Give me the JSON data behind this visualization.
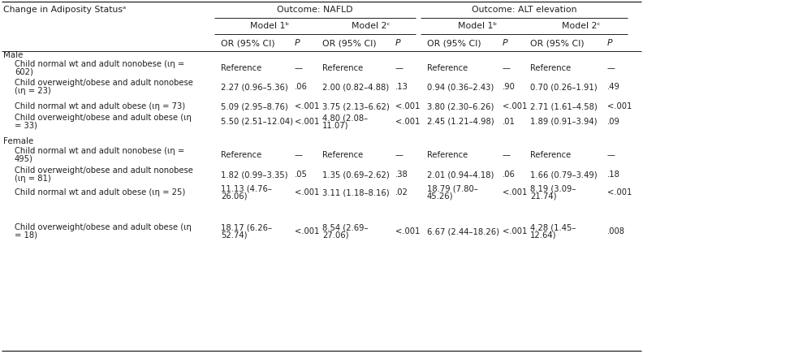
{
  "title_col": "Change in Adiposity Statusᵃ",
  "outcome_nafld": "Outcome: NAFLD",
  "outcome_alt": "Outcome: ALT elevation",
  "model1b": "Model 1ᵇ",
  "model2c": "Model 2ᶜ",
  "or_ci": "OR (95% CI)",
  "p_label": "P",
  "section_male": "Male",
  "section_female": "Female",
  "rows": [
    {
      "label_lines": [
        "Child normal wt and adult nonobese (ιη =",
        "602)"
      ],
      "m1_nafld_or_lines": [
        "Reference"
      ],
      "m1_nafld_p": "—",
      "m2_nafld_or_lines": [
        "Reference"
      ],
      "m2_nafld_p": "—",
      "m1_alt_or_lines": [
        "Reference"
      ],
      "m1_alt_p": "—",
      "m2_alt_or_lines": [
        "Reference"
      ],
      "m2_alt_p": "—",
      "section": "male"
    },
    {
      "label_lines": [
        "Child overweight/obese and adult nonobese",
        "(ιη = 23)"
      ],
      "m1_nafld_or_lines": [
        "2.27 (0.96–5.36)"
      ],
      "m1_nafld_p": ".06",
      "m2_nafld_or_lines": [
        "2.00 (0.82–4.88)"
      ],
      "m2_nafld_p": ".13",
      "m1_alt_or_lines": [
        "0.94 (0.36–2.43)"
      ],
      "m1_alt_p": ".90",
      "m2_alt_or_lines": [
        "0.70 (0.26–1.91)"
      ],
      "m2_alt_p": ".49",
      "section": "male"
    },
    {
      "label_lines": [
        "Child normal wt and adult obese (ιη = 73)"
      ],
      "m1_nafld_or_lines": [
        "5.09 (2.95–8.76)"
      ],
      "m1_nafld_p": "<.001",
      "m2_nafld_or_lines": [
        "3.75 (2.13–6.62)"
      ],
      "m2_nafld_p": "<.001",
      "m1_alt_or_lines": [
        "3.80 (2.30–6.26)"
      ],
      "m1_alt_p": "<.001",
      "m2_alt_or_lines": [
        "2.71 (1.61–4.58)"
      ],
      "m2_alt_p": "<.001",
      "section": "male"
    },
    {
      "label_lines": [
        "Child overweight/obese and adult obese (ιη",
        "= 33)"
      ],
      "m1_nafld_or_lines": [
        "5.50 (2.51–12.04)"
      ],
      "m1_nafld_p": "<.001",
      "m2_nafld_or_lines": [
        "4.80 (2.08–",
        "11.07)"
      ],
      "m2_nafld_p": "<.001",
      "m1_alt_or_lines": [
        "2.45 (1.21–4.98)"
      ],
      "m1_alt_p": ".01",
      "m2_alt_or_lines": [
        "1.89 (0.91–3.94)"
      ],
      "m2_alt_p": ".09",
      "section": "male"
    },
    {
      "label_lines": [
        "Child normal wt and adult nonobese (ιη =",
        "495)"
      ],
      "m1_nafld_or_lines": [
        "Reference"
      ],
      "m1_nafld_p": "—",
      "m2_nafld_or_lines": [
        "Reference"
      ],
      "m2_nafld_p": "—",
      "m1_alt_or_lines": [
        "Reference"
      ],
      "m1_alt_p": "—",
      "m2_alt_or_lines": [
        "Reference"
      ],
      "m2_alt_p": "—",
      "section": "female"
    },
    {
      "label_lines": [
        "Child overweight/obese and adult nonobese",
        "(ιη = 81)"
      ],
      "m1_nafld_or_lines": [
        "1.82 (0.99–3.35)"
      ],
      "m1_nafld_p": ".05",
      "m2_nafld_or_lines": [
        "1.35 (0.69–2.62)"
      ],
      "m2_nafld_p": ".38",
      "m1_alt_or_lines": [
        "2.01 (0.94–4.18)"
      ],
      "m1_alt_p": ".06",
      "m2_alt_or_lines": [
        "1.66 (0.79–3.49)"
      ],
      "m2_alt_p": ".18",
      "section": "female"
    },
    {
      "label_lines": [
        "Child normal wt and adult obese (ιη = 25)"
      ],
      "m1_nafld_or_lines": [
        "11.13 (4.76–",
        "26.06)"
      ],
      "m1_nafld_p": "<.001",
      "m2_nafld_or_lines": [
        "3.11 (1.18–8.16)"
      ],
      "m2_nafld_p": ".02",
      "m1_alt_or_lines": [
        "18.79 (7.80–",
        "45.26)"
      ],
      "m1_alt_p": "<.001",
      "m2_alt_or_lines": [
        "8.19 (3.09–",
        "21.74)"
      ],
      "m2_alt_p": "<.001",
      "section": "female"
    },
    {
      "label_lines": [
        "Child overweight/obese and adult obese (ιη",
        "= 18)"
      ],
      "m1_nafld_or_lines": [
        "18.17 (6.26–",
        "52.74)"
      ],
      "m1_nafld_p": "<.001",
      "m2_nafld_or_lines": [
        "8.54 (2.69–",
        "27.06)"
      ],
      "m2_nafld_p": "<.001",
      "m1_alt_or_lines": [
        "6.67 (2.44–18.26)"
      ],
      "m1_alt_p": "<.001",
      "m2_alt_or_lines": [
        "4.28 (1.45–",
        "12.64)"
      ],
      "m2_alt_p": ".008",
      "section": "female"
    }
  ],
  "fs_header": 7.8,
  "fs_body": 7.2,
  "fs_section": 7.4,
  "bg_color": "#ffffff",
  "text_color": "#231f20",
  "line_color": "#231f20"
}
